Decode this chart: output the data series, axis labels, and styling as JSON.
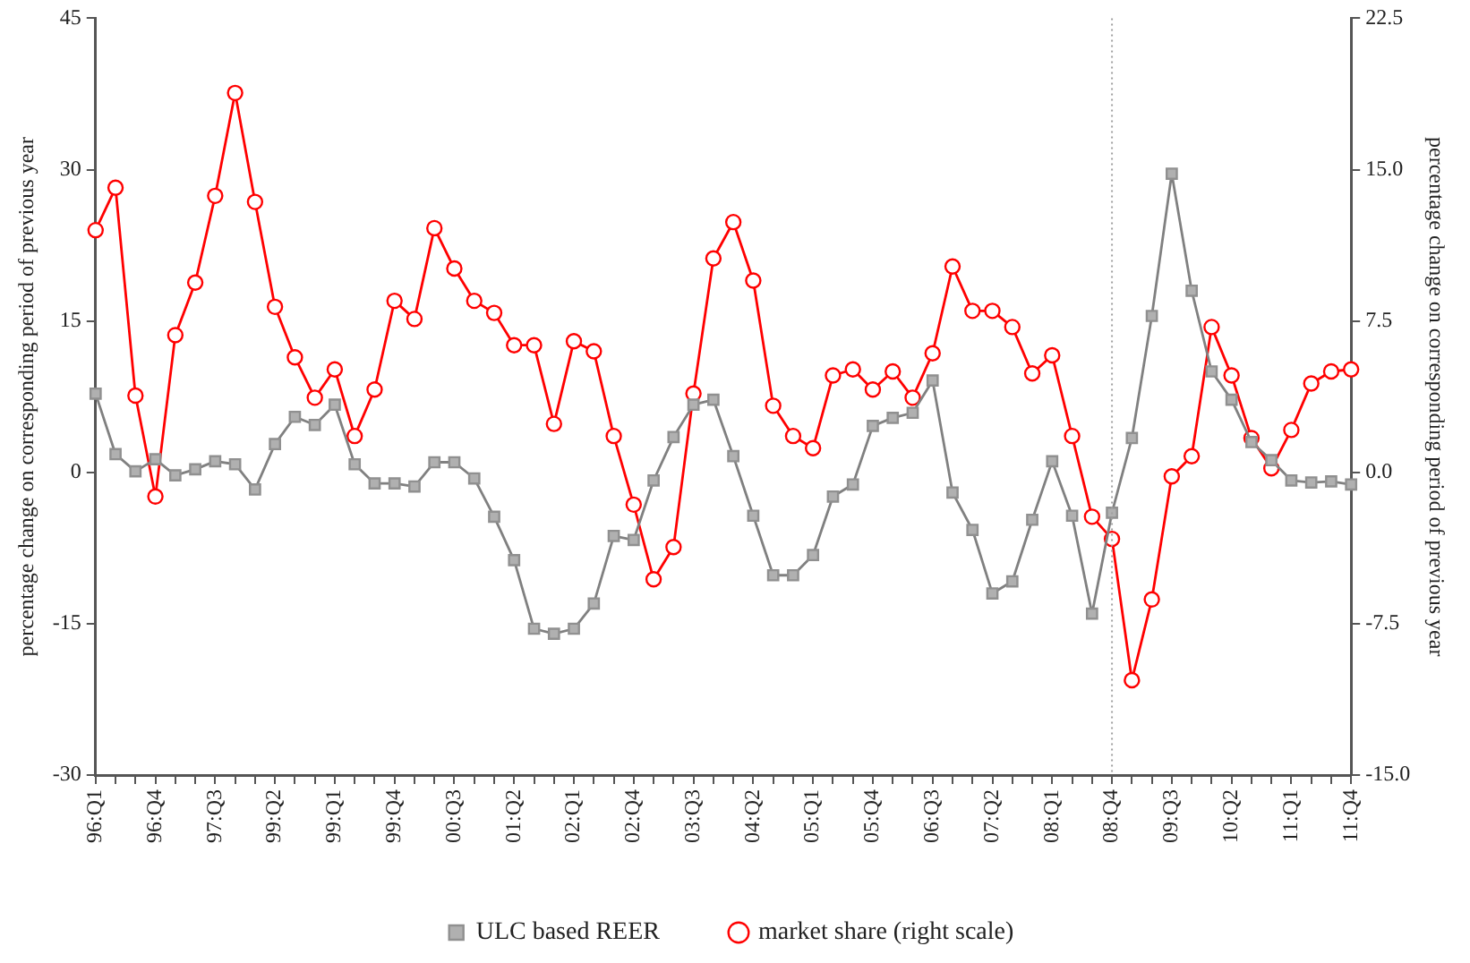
{
  "chart_data": {
    "type": "line",
    "ylabel": "percentage change on corresponding period of previous year",
    "y2label": "percentage change on corresponding period of previous year",
    "categories": [
      "96:Q1",
      null,
      null,
      "96:Q4",
      null,
      null,
      "97:Q3",
      null,
      null,
      "99:Q2",
      null,
      null,
      "99:Q1",
      null,
      null,
      "99:Q4",
      null,
      null,
      "00:Q3",
      null,
      null,
      "01:Q2",
      null,
      null,
      "02:Q1",
      null,
      null,
      "02:Q4",
      null,
      null,
      "03:Q3",
      null,
      null,
      "04:Q2",
      null,
      null,
      "05:Q1",
      null,
      null,
      "05:Q4",
      null,
      null,
      "06:Q3",
      null,
      null,
      "07:Q2",
      null,
      null,
      "08:Q1",
      null,
      null,
      "08:Q4",
      null,
      null,
      "09:Q3",
      null,
      null,
      "10:Q2",
      null,
      null,
      "11:Q1",
      null,
      null,
      "11:Q4"
    ],
    "series": [
      {
        "name": "ULC based REER",
        "color": "#808080",
        "marker": "square",
        "values": [
          7.8,
          1.8,
          0.1,
          1.3,
          -0.3,
          0.3,
          1.1,
          0.8,
          -1.7,
          2.8,
          5.5,
          4.7,
          6.7,
          0.8,
          -1.1,
          -1.1,
          -1.4,
          1.0,
          1.0,
          -0.6,
          -4.4,
          -8.7,
          -15.5,
          -16.0,
          -15.5,
          -13.0,
          -6.3,
          -6.7,
          -0.8,
          3.5,
          6.7,
          7.2,
          1.6,
          -4.3,
          -10.2,
          -10.2,
          -8.2,
          -2.4,
          -1.2,
          4.6,
          5.4,
          5.9,
          9.1,
          -2.0,
          -5.7,
          -12.0,
          -10.8,
          -4.7,
          1.1,
          -4.3,
          -14.0,
          -4.0,
          3.4,
          15.5,
          29.6,
          18.0,
          10.0,
          7.2,
          3.0,
          1.2,
          -0.8,
          -1.0,
          -0.9,
          -1.2
        ]
      },
      {
        "name": "market share (right scale)",
        "color": "#ff0000",
        "marker": "circle",
        "axis": "y2",
        "values": [
          12.0,
          14.1,
          3.8,
          -1.2,
          6.8,
          9.4,
          13.7,
          18.8,
          13.4,
          8.2,
          5.7,
          3.7,
          5.1,
          1.8,
          4.1,
          8.5,
          7.6,
          12.1,
          10.1,
          8.5,
          7.9,
          6.3,
          6.3,
          2.4,
          6.5,
          6.0,
          1.8,
          -1.6,
          -5.3,
          -3.7,
          3.9,
          10.6,
          12.4,
          9.5,
          3.3,
          1.8,
          1.2,
          4.8,
          5.1,
          4.1,
          5.0,
          3.7,
          5.9,
          10.2,
          8.0,
          8.0,
          7.2,
          4.9,
          5.8,
          1.8,
          -2.2,
          -3.3,
          -10.3,
          -6.3,
          -0.2,
          0.8,
          7.2,
          4.8,
          1.7,
          0.2,
          2.1,
          4.4,
          5.0,
          5.1
        ]
      }
    ],
    "ylim": [
      -30,
      45
    ],
    "yticks": [
      -30,
      -15,
      0,
      15,
      30,
      45
    ],
    "y2lim": [
      -15,
      22.5
    ],
    "y2ticks": [
      {
        "value": -15,
        "label": "-15.0"
      },
      {
        "value": -7.5,
        "label": "-7.5"
      },
      {
        "value": 0,
        "label": "0.0"
      },
      {
        "value": 7.5,
        "label": "7.5"
      },
      {
        "value": 15,
        "label": "15.0"
      },
      {
        "value": 22.5,
        "label": "22.5"
      }
    ],
    "ref_lines": [
      {
        "axis": "x",
        "value": "08:Q4",
        "color": "#a0a0a0",
        "line_style": "dotted"
      }
    ],
    "grid": false,
    "legend": "bottom",
    "line_style": "solid"
  }
}
